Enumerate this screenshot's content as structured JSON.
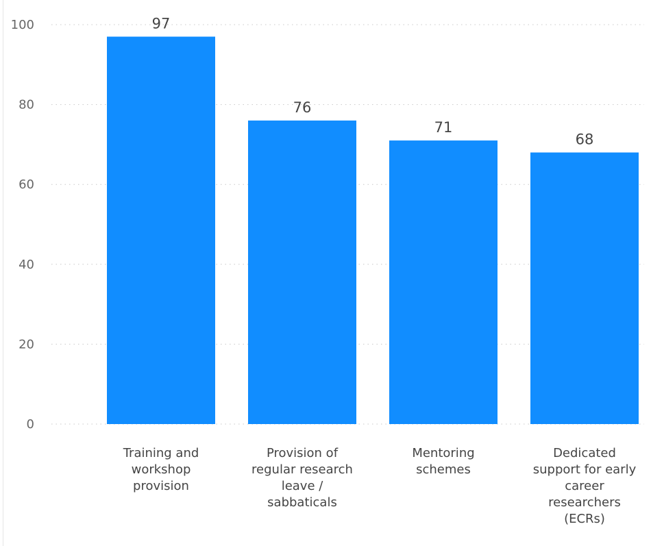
{
  "chart_data": {
    "type": "bar",
    "title": "",
    "xlabel": "",
    "ylabel": "",
    "ylim": [
      0,
      100
    ],
    "yticks": [
      0,
      20,
      40,
      60,
      80,
      100
    ],
    "grid": true,
    "bar_color": "#118DFF",
    "categories": [
      [
        "Training and",
        "workshop",
        "provision"
      ],
      [
        "Provision of",
        "regular research",
        "leave /",
        "sabbaticals"
      ],
      [
        "Mentoring",
        "schemes"
      ],
      [
        "Dedicated",
        "support for early",
        "career",
        "researchers",
        "(ECRs)"
      ]
    ],
    "values": [
      97,
      76,
      71,
      68
    ]
  }
}
